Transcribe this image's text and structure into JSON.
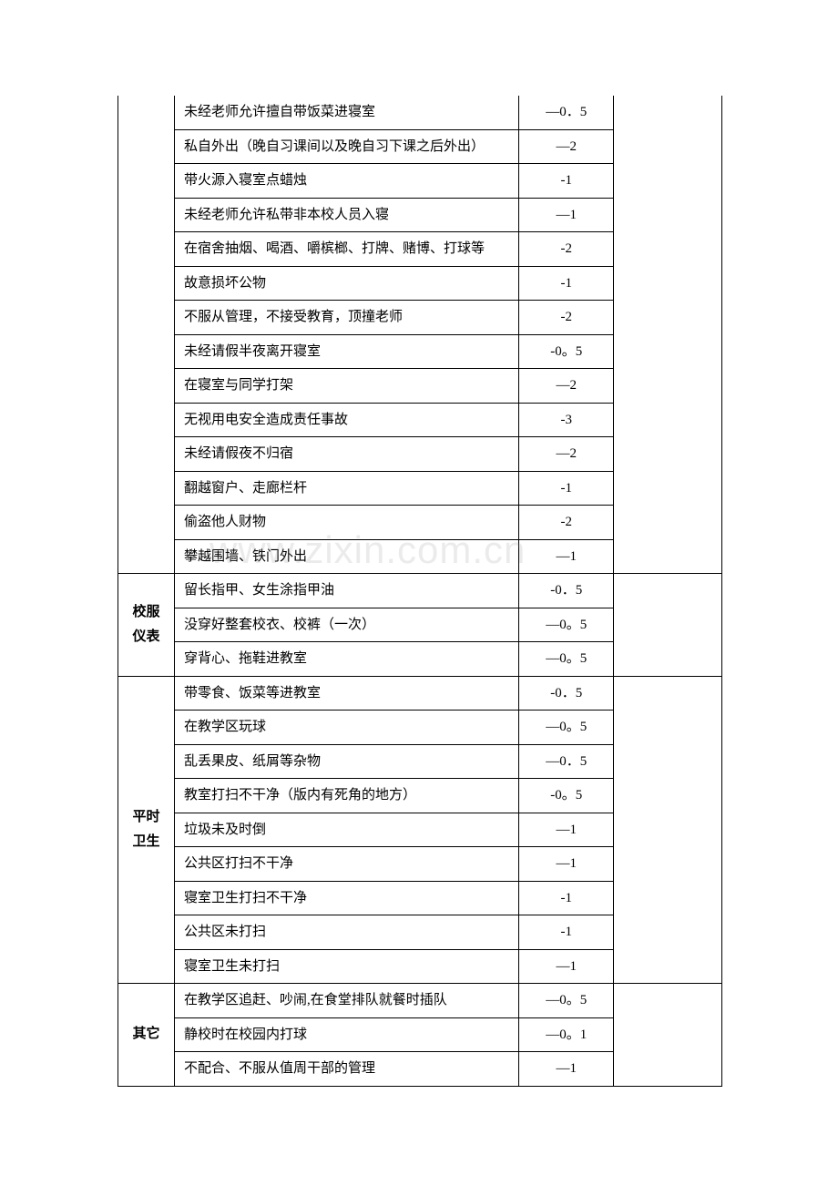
{
  "table": {
    "border_color": "#000000",
    "background_color": "#ffffff",
    "text_color": "#000000",
    "font_size": 15,
    "columns": {
      "category_width": 62,
      "description_width": 379,
      "score_width": 104,
      "last_width": 119
    },
    "sections": [
      {
        "category": "",
        "category_visible": false,
        "rows": [
          {
            "description": "未经老师允许擅自带饭菜进寝室",
            "score": "—0．5"
          },
          {
            "description": "私自外出（晚自习课间以及晚自习下课之后外出）",
            "score": "—2"
          },
          {
            "description": "带火源入寝室点蜡烛",
            "score": "-1"
          },
          {
            "description": "未经老师允许私带非本校人员入寝",
            "score": "—1"
          },
          {
            "description": "在宿舍抽烟、喝酒、嚼槟榔、打牌、赌博、打球等",
            "score": "-2"
          },
          {
            "description": "故意损坏公物",
            "score": "-1"
          },
          {
            "description": "不服从管理，不接受教育，顶撞老师",
            "score": "-2"
          },
          {
            "description": "未经请假半夜离开寝室",
            "score": "-0。5"
          },
          {
            "description": "在寝室与同学打架",
            "score": "—2"
          },
          {
            "description": "无视用电安全造成责任事故",
            "score": "-3"
          },
          {
            "description": "未经请假夜不归宿",
            "score": "—2"
          },
          {
            "description": "翻越窗户、走廊栏杆",
            "score": "-1"
          },
          {
            "description": "偷盗他人财物",
            "score": "-2"
          },
          {
            "description": "攀越围墙、铁门外出",
            "score": "—1"
          }
        ]
      },
      {
        "category": "校服仪表",
        "category_visible": true,
        "rows": [
          {
            "description": "留长指甲、女生涂指甲油",
            "score": "-0．5"
          },
          {
            "description": "没穿好整套校衣、校裤（一次）",
            "score": "—0。5"
          },
          {
            "description": "穿背心、拖鞋进教室",
            "score": "—0。5"
          }
        ]
      },
      {
        "category": "平时卫生",
        "category_visible": true,
        "rows": [
          {
            "description": "带零食、饭菜等进教室",
            "score": "-0．5"
          },
          {
            "description": "在教学区玩球",
            "score": "—0。5"
          },
          {
            "description": "乱丢果皮、纸屑等杂物",
            "score": "—0．5"
          },
          {
            "description": "教室打扫不干净（版内有死角的地方）",
            "score": "-0。5"
          },
          {
            "description": "垃圾未及时倒",
            "score": "—1"
          },
          {
            "description": "公共区打扫不干净",
            "score": "—1"
          },
          {
            "description": "寝室卫生打扫不干净",
            "score": "-1"
          },
          {
            "description": "公共区未打扫",
            "score": "-1"
          },
          {
            "description": "寝室卫生未打扫",
            "score": "—1"
          }
        ]
      },
      {
        "category": "其它",
        "category_visible": true,
        "rows": [
          {
            "description": "在教学区追赶、吵闹,在食堂排队就餐时插队",
            "score": "—0。5"
          },
          {
            "description": "静校时在校园内打球",
            "score": "—0。1"
          },
          {
            "description": "不配合、不服从值周干部的管理",
            "score": "—1"
          }
        ]
      }
    ]
  },
  "watermark": {
    "text": "www.zixin.com.cn",
    "color": "#d9d9d9"
  }
}
